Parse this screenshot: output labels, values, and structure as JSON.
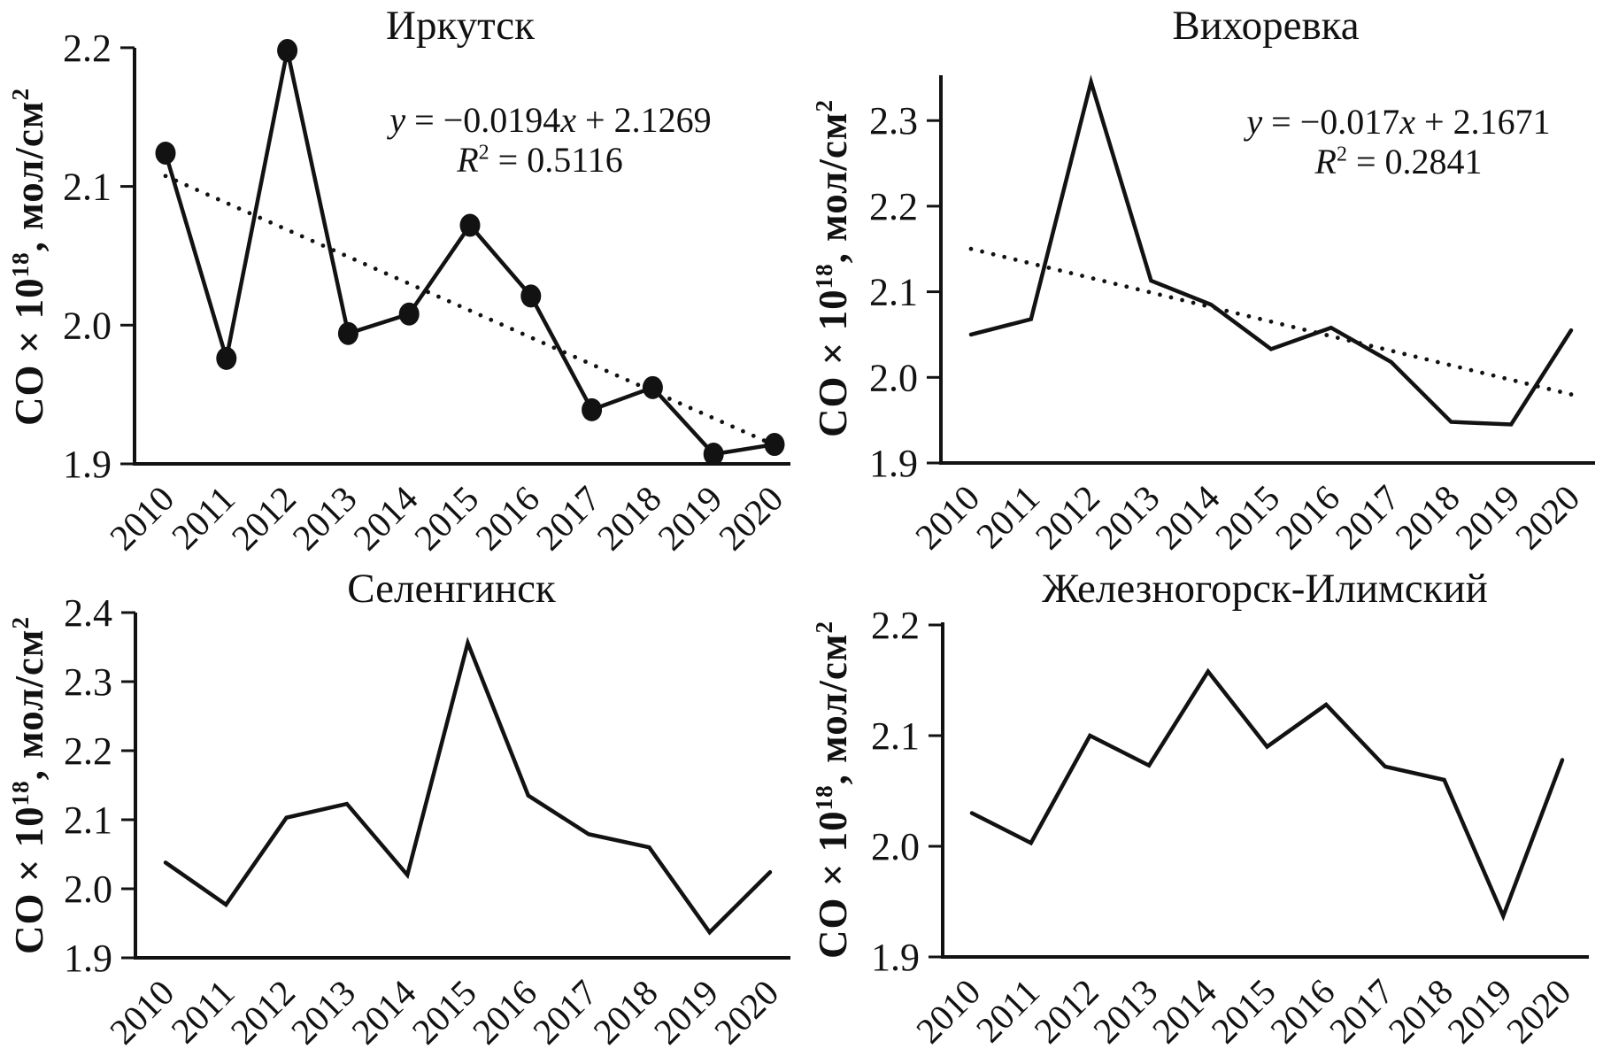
{
  "colors": {
    "line": "#121212",
    "text": "#111111",
    "background": "#ffffff"
  },
  "chart_data": [
    {
      "type": "line",
      "title": "Иркутск",
      "ylabel": {
        "pre": "CO × 10",
        "sup18": "18",
        "mid": ", мол/см",
        "sup2": "2"
      },
      "years": [
        "2010",
        "2011",
        "2012",
        "2013",
        "2014",
        "2015",
        "2016",
        "2017",
        "2018",
        "2019",
        "2020"
      ],
      "values": [
        2.124,
        1.976,
        2.198,
        1.994,
        2.008,
        2.072,
        2.021,
        1.939,
        1.955,
        1.907,
        1.914
      ],
      "ylim": [
        1.9,
        2.2
      ],
      "yticks": [
        "1.9",
        "2.0",
        "2.1",
        "2.2"
      ],
      "grid": false,
      "markers": true,
      "legend": "none",
      "trendline": {
        "style": "dotted",
        "slope": -0.0194,
        "intercept": 2.1269
      },
      "equation": {
        "y": "y",
        "mid": " = −0.0194",
        "x": "x",
        "tail": " + 2.1269"
      },
      "r2": {
        "base": "R",
        "sup": "2",
        "tail": " = 0.5116"
      }
    },
    {
      "type": "line",
      "title": "Вихоревка",
      "ylabel": {
        "pre": "CO × 10",
        "sup18": "18",
        "mid": ", мол/см",
        "sup2": "2"
      },
      "years": [
        "2010",
        "2011",
        "2012",
        "2013",
        "2014",
        "2015",
        "2016",
        "2017",
        "2018",
        "2019",
        "2020"
      ],
      "values": [
        2.05,
        2.068,
        2.345,
        2.113,
        2.085,
        2.033,
        2.058,
        2.018,
        1.948,
        1.945,
        2.055
      ],
      "ylim": [
        1.9,
        2.37
      ],
      "yticks": [
        "1.9",
        "2.0",
        "2.1",
        "2.2",
        "2.3"
      ],
      "grid": false,
      "markers": false,
      "legend": "none",
      "trendline": {
        "style": "dotted",
        "slope": -0.017,
        "intercept": 2.1671
      },
      "equation": {
        "y": "y",
        "mid": " = −0.017",
        "x": "x",
        "tail": " + 2.1671"
      },
      "r2": {
        "base": "R",
        "sup": "2",
        "tail": " = 0.2841"
      }
    },
    {
      "type": "line",
      "title": "Селенгинск",
      "ylabel": {
        "pre": "CO × 10",
        "sup18": "18",
        "mid": ", мол/см",
        "sup2": "2"
      },
      "years": [
        "2010",
        "2011",
        "2012",
        "2013",
        "2014",
        "2015",
        "2016",
        "2017",
        "2018",
        "2019",
        "2020"
      ],
      "values": [
        2.038,
        1.977,
        2.103,
        2.123,
        2.02,
        2.356,
        2.135,
        2.079,
        2.06,
        1.937,
        2.024
      ],
      "ylim": [
        1.9,
        2.4
      ],
      "yticks": [
        "1.9",
        "2.0",
        "2.1",
        "2.2",
        "2.3",
        "2.4"
      ],
      "grid": false,
      "markers": false,
      "legend": "none",
      "trendline": null,
      "equation": null,
      "r2": null
    },
    {
      "type": "line",
      "title": "Железногорск-Илимский",
      "ylabel": {
        "pre": "CO × 10",
        "sup18": "18",
        "mid": ", мол/см",
        "sup2": "2"
      },
      "years": [
        "2010",
        "2011",
        "2012",
        "2013",
        "2014",
        "2015",
        "2016",
        "2017",
        "2018",
        "2019",
        "2020"
      ],
      "values": [
        2.03,
        2.003,
        2.1,
        2.073,
        2.158,
        2.09,
        2.128,
        2.072,
        2.06,
        1.937,
        2.078
      ],
      "ylim": [
        1.9,
        2.2
      ],
      "yticks": [
        "1.9",
        "2.0",
        "2.1",
        "2.2"
      ],
      "grid": false,
      "markers": false,
      "legend": "none",
      "trendline": null,
      "equation": null,
      "r2": null
    }
  ]
}
